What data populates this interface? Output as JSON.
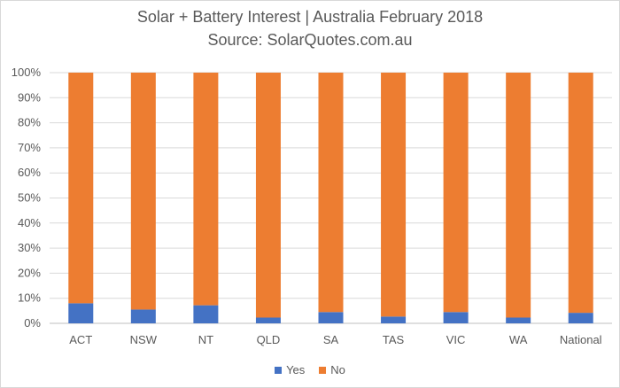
{
  "chart_data": {
    "type": "bar",
    "stacked": true,
    "title": "Solar + Battery Interest | Australia February 2018",
    "subtitle": "Source: SolarQuotes.com.au",
    "xlabel": "",
    "ylabel": "",
    "ylim": [
      0,
      100
    ],
    "ytick_labels": [
      "0%",
      "10%",
      "20%",
      "30%",
      "40%",
      "50%",
      "60%",
      "70%",
      "80%",
      "90%",
      "100%"
    ],
    "categories": [
      "ACT",
      "NSW",
      "NT",
      "QLD",
      "SA",
      "TAS",
      "VIC",
      "WA",
      "National"
    ],
    "series": [
      {
        "name": "Yes",
        "color": "#4472c4",
        "values": [
          8,
          5.5,
          7.2,
          2.3,
          4.5,
          2.7,
          4.5,
          2.3,
          4.2
        ]
      },
      {
        "name": "No",
        "color": "#ed7d31",
        "values": [
          92,
          94.5,
          92.8,
          97.7,
          95.5,
          97.3,
          95.5,
          97.7,
          95.8
        ]
      }
    ],
    "grid": true,
    "legend": "bottom"
  }
}
